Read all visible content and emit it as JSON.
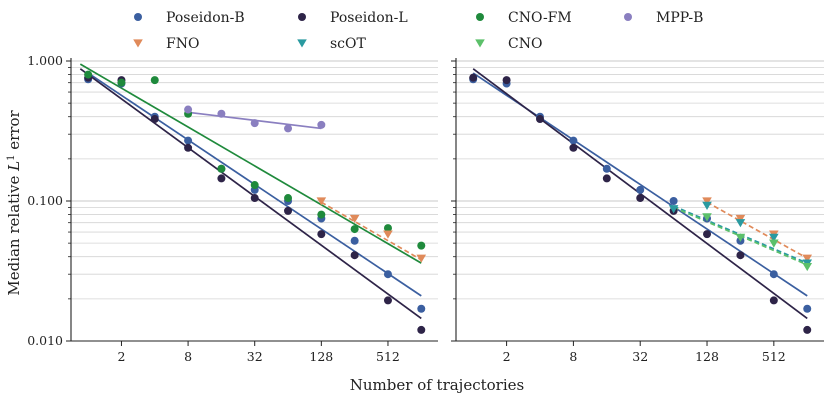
{
  "chart_data": {
    "type": "scatter",
    "scale": "log-log",
    "xlabel": "Number of trajectories",
    "ylabel_prefix": "Median relative ",
    "ylabel_symbol": "L",
    "ylabel_sup": "1",
    "ylabel_suffix": " error",
    "xlim": [
      0.7,
      1450
    ],
    "ylim": [
      0.01,
      1.0
    ],
    "x_ticks": [
      2,
      8,
      32,
      128,
      512
    ],
    "x_tick_labels": [
      "2",
      "8",
      "32",
      "128",
      "512"
    ],
    "y_ticks": [
      0.01,
      0.1,
      1.0
    ],
    "y_tick_labels": [
      "0.010",
      "0.100",
      "1.000"
    ],
    "grid": "horizontal minor and major",
    "legend": {
      "placement": "top, above panels",
      "entries": [
        {
          "name": "Poseidon-B",
          "marker": "circle",
          "color": "#3b5fa0"
        },
        {
          "name": "Poseidon-L",
          "marker": "circle",
          "color": "#2e2448"
        },
        {
          "name": "CNO-FM",
          "marker": "circle",
          "color": "#1f8a3c"
        },
        {
          "name": "MPP-B",
          "marker": "circle",
          "color": "#8a7fc0"
        },
        {
          "name": "FNO",
          "marker": "triangle-down",
          "color": "#e08a5a"
        },
        {
          "name": "scOT",
          "marker": "triangle-down",
          "color": "#2a9aa0"
        },
        {
          "name": "CNO",
          "marker": "triangle-down",
          "color": "#5cc06a"
        }
      ]
    },
    "panels": [
      {
        "name": "left",
        "series": [
          {
            "name": "Poseidon-B",
            "marker": "circle",
            "color": "#3b5fa0",
            "x": [
              1,
              2,
              4,
              8,
              16,
              32,
              64,
              128,
              256,
              512,
              1024
            ],
            "y": [
              0.74,
              0.69,
              0.4,
              0.27,
              0.17,
              0.12,
              0.1,
              0.075,
              0.052,
              0.03,
              0.017
            ],
            "fit": {
              "x": [
                1,
                1024
              ],
              "y": [
                0.82,
                0.021
              ],
              "style": "solid"
            }
          },
          {
            "name": "Poseidon-L",
            "marker": "circle",
            "color": "#2e2448",
            "x": [
              1,
              2,
              4,
              8,
              16,
              32,
              64,
              128,
              256,
              512,
              1024
            ],
            "y": [
              0.76,
              0.73,
              0.385,
              0.24,
              0.145,
              0.105,
              0.085,
              0.058,
              0.041,
              0.0195,
              0.012
            ],
            "fit": {
              "x": [
                0.85,
                1024
              ],
              "y": [
                0.88,
                0.0145
              ],
              "style": "solid"
            }
          },
          {
            "name": "CNO-FM",
            "marker": "circle",
            "color": "#1f8a3c",
            "x": [
              1,
              2,
              4,
              8,
              16,
              32,
              64,
              128,
              256,
              512,
              1024
            ],
            "y": [
              0.8,
              0.7,
              0.73,
              0.42,
              0.17,
              0.13,
              0.105,
              0.08,
              0.063,
              0.064,
              0.048
            ],
            "fit": {
              "x": [
                0.85,
                1024
              ],
              "y": [
                0.95,
                0.036
              ],
              "style": "solid"
            }
          },
          {
            "name": "MPP-B",
            "marker": "circle",
            "color": "#8a7fc0",
            "x": [
              8,
              16,
              32,
              64,
              128
            ],
            "y": [
              0.45,
              0.42,
              0.36,
              0.33,
              0.35
            ],
            "fit": {
              "x": [
                8,
                128
              ],
              "y": [
                0.43,
                0.33
              ],
              "style": "solid"
            }
          },
          {
            "name": "FNO",
            "marker": "triangle-down",
            "color": "#e08a5a",
            "x": [
              128,
              256,
              512,
              1024
            ],
            "y": [
              0.1,
              0.075,
              0.058,
              0.039
            ],
            "fit": {
              "x": [
                128,
                1024
              ],
              "y": [
                0.098,
                0.038
              ],
              "style": "dashed"
            }
          }
        ]
      },
      {
        "name": "right",
        "series": [
          {
            "name": "Poseidon-B",
            "marker": "circle",
            "color": "#3b5fa0",
            "x": [
              1,
              2,
              4,
              8,
              16,
              32,
              64,
              128,
              256,
              512,
              1024
            ],
            "y": [
              0.74,
              0.69,
              0.4,
              0.27,
              0.17,
              0.12,
              0.1,
              0.075,
              0.052,
              0.03,
              0.017
            ],
            "fit": {
              "x": [
                1,
                1024
              ],
              "y": [
                0.82,
                0.021
              ],
              "style": "solid"
            }
          },
          {
            "name": "Poseidon-L",
            "marker": "circle",
            "color": "#2e2448",
            "x": [
              1,
              2,
              4,
              8,
              16,
              32,
              64,
              128,
              256,
              512,
              1024
            ],
            "y": [
              0.76,
              0.73,
              0.385,
              0.24,
              0.145,
              0.105,
              0.085,
              0.058,
              0.041,
              0.0195,
              0.012
            ],
            "fit": {
              "x": [
                1,
                1024
              ],
              "y": [
                0.88,
                0.0145
              ],
              "style": "solid"
            }
          },
          {
            "name": "FNO",
            "marker": "triangle-down",
            "color": "#e08a5a",
            "x": [
              128,
              256,
              512,
              1024
            ],
            "y": [
              0.1,
              0.075,
              0.058,
              0.039
            ],
            "fit": {
              "x": [
                128,
                1024
              ],
              "y": [
                0.098,
                0.039
              ],
              "style": "dashed"
            }
          },
          {
            "name": "scOT",
            "marker": "triangle-down",
            "color": "#2a9aa0",
            "x": [
              64,
              128,
              256,
              512,
              1024
            ],
            "y": [
              0.088,
              0.093,
              0.07,
              0.055,
              0.036
            ],
            "fit": {
              "x": [
                64,
                1024
              ],
              "y": [
                0.092,
                0.036
              ],
              "style": "dashed"
            }
          },
          {
            "name": "CNO",
            "marker": "triangle-down",
            "color": "#5cc06a",
            "x": [
              128,
              256,
              512,
              1024
            ],
            "y": [
              0.077,
              0.055,
              0.05,
              0.034
            ],
            "fit": {
              "x": [
                64,
                1024
              ],
              "y": [
                0.09,
                0.035
              ],
              "style": "dashed"
            }
          }
        ]
      }
    ]
  }
}
